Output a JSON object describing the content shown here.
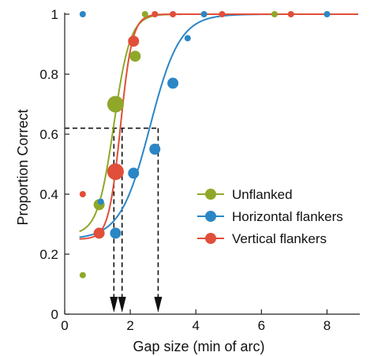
{
  "chart_data": {
    "type": "scatter",
    "title": "",
    "xlabel": "Gap size (min of arc)",
    "ylabel": "Proportion Correct",
    "xlim": [
      0,
      9
    ],
    "ylim": [
      0,
      1
    ],
    "xticks": [
      0,
      2,
      4,
      6,
      8
    ],
    "yticks": [
      0,
      0.2,
      0.4,
      0.6,
      0.8,
      1
    ],
    "xtick_labels": [
      "0",
      "2",
      "4",
      "6",
      "8"
    ],
    "ytick_labels": [
      "0",
      "0.2",
      "0.4",
      "0.6",
      "0.8",
      "1"
    ],
    "grid": false,
    "legend_position": "right",
    "series": [
      {
        "name": "Unflanked",
        "color": "#8fa82a",
        "points": [
          {
            "x": 0.55,
            "y": 0.13,
            "weight": "small"
          },
          {
            "x": 1.05,
            "y": 0.365,
            "weight": "medium"
          },
          {
            "x": 1.55,
            "y": 0.7,
            "weight": "large"
          },
          {
            "x": 2.15,
            "y": 0.86,
            "weight": "medium"
          },
          {
            "x": 2.45,
            "y": 1.0,
            "weight": "small"
          },
          {
            "x": 6.4,
            "y": 1.0,
            "weight": "small"
          }
        ],
        "fit": {
          "type": "logistic",
          "lower": 0.265,
          "upper": 1.0,
          "midpoint": 1.5,
          "slope": 4.0,
          "x_start": 0.45
        }
      },
      {
        "name": "Horizontal flankers",
        "color": "#2b86c6",
        "points": [
          {
            "x": 0.55,
            "y": 1.0,
            "weight": "small"
          },
          {
            "x": 1.1,
            "y": 0.375,
            "weight": "small"
          },
          {
            "x": 1.55,
            "y": 0.27,
            "weight": "medium"
          },
          {
            "x": 2.1,
            "y": 0.47,
            "weight": "medium"
          },
          {
            "x": 2.75,
            "y": 0.55,
            "weight": "medium"
          },
          {
            "x": 3.3,
            "y": 0.77,
            "weight": "medium"
          },
          {
            "x": 3.75,
            "y": 0.92,
            "weight": "small"
          },
          {
            "x": 4.25,
            "y": 1.0,
            "weight": "small"
          },
          {
            "x": 8.0,
            "y": 1.0,
            "weight": "small"
          }
        ],
        "fit": {
          "type": "logistic",
          "lower": 0.25,
          "upper": 1.0,
          "midpoint": 2.6,
          "slope": 2.2,
          "x_start": 0.45
        }
      },
      {
        "name": "Vertical flankers",
        "color": "#e14e39",
        "points": [
          {
            "x": 0.55,
            "y": 0.4,
            "weight": "small"
          },
          {
            "x": 1.05,
            "y": 0.27,
            "weight": "medium"
          },
          {
            "x": 1.55,
            "y": 0.475,
            "weight": "large"
          },
          {
            "x": 2.1,
            "y": 0.91,
            "weight": "medium"
          },
          {
            "x": 2.75,
            "y": 1.0,
            "weight": "small"
          },
          {
            "x": 3.3,
            "y": 1.0,
            "weight": "small"
          },
          {
            "x": 4.8,
            "y": 1.0,
            "weight": "small"
          },
          {
            "x": 6.9,
            "y": 1.0,
            "weight": "small"
          }
        ],
        "fit": {
          "type": "logistic",
          "lower": 0.25,
          "upper": 1.0,
          "midpoint": 1.7,
          "slope": 5.5,
          "x_start": 0.45
        }
      }
    ],
    "threshold": {
      "y": 0.62,
      "x_values": [
        1.5,
        1.75,
        2.85
      ]
    }
  }
}
